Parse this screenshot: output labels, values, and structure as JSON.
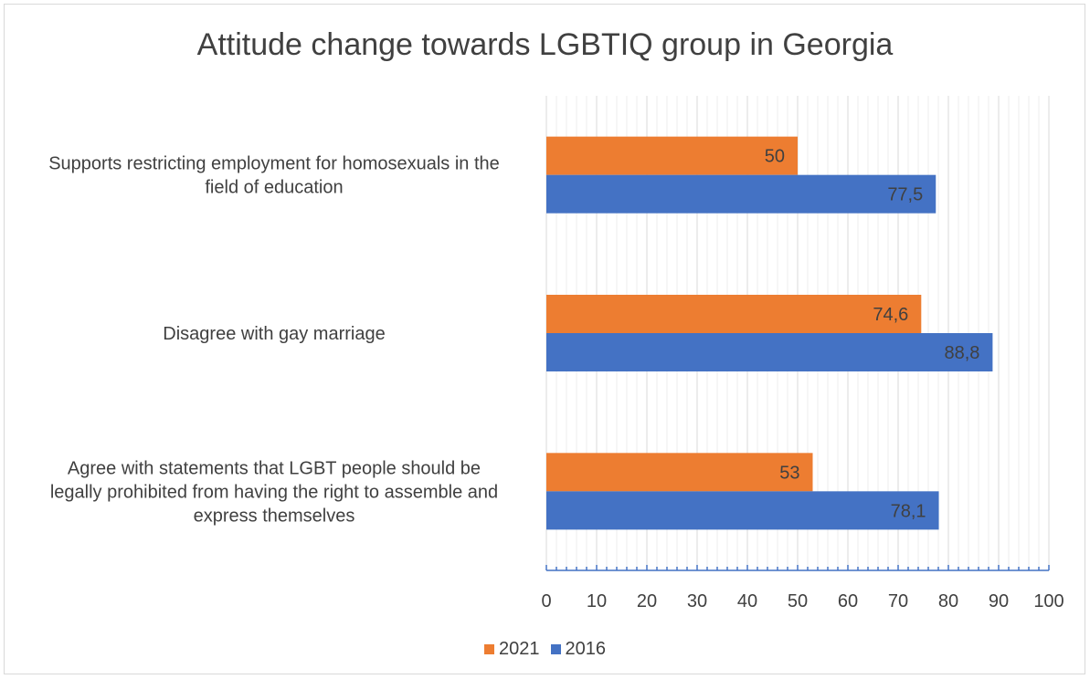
{
  "chart_data": {
    "type": "bar",
    "orientation": "horizontal",
    "title": "Attitude change towards LGBTIQ group in Georgia",
    "categories": [
      [
        "Supports restricting employment for homosexuals in the",
        "field of education"
      ],
      [
        "Disagree with gay marriage"
      ],
      [
        "Agree with statements that LGBT people should be",
        "legally prohibited from having the right to assemble and",
        "express themselves"
      ]
    ],
    "series": [
      {
        "name": "2021",
        "color": "#ed7d31",
        "values": [
          50,
          74.6,
          53
        ],
        "labels": [
          "50",
          "74,6",
          "53"
        ]
      },
      {
        "name": "2016",
        "color": "#4472c4",
        "values": [
          77.5,
          88.8,
          78.1
        ],
        "labels": [
          "77,5",
          "88,8",
          "78,1"
        ]
      }
    ],
    "xlim": [
      0,
      100
    ],
    "xticks": [
      "0",
      "10",
      "20",
      "30",
      "40",
      "50",
      "60",
      "70",
      "80",
      "90",
      "100"
    ],
    "grid": true,
    "legend_position": "bottom"
  }
}
